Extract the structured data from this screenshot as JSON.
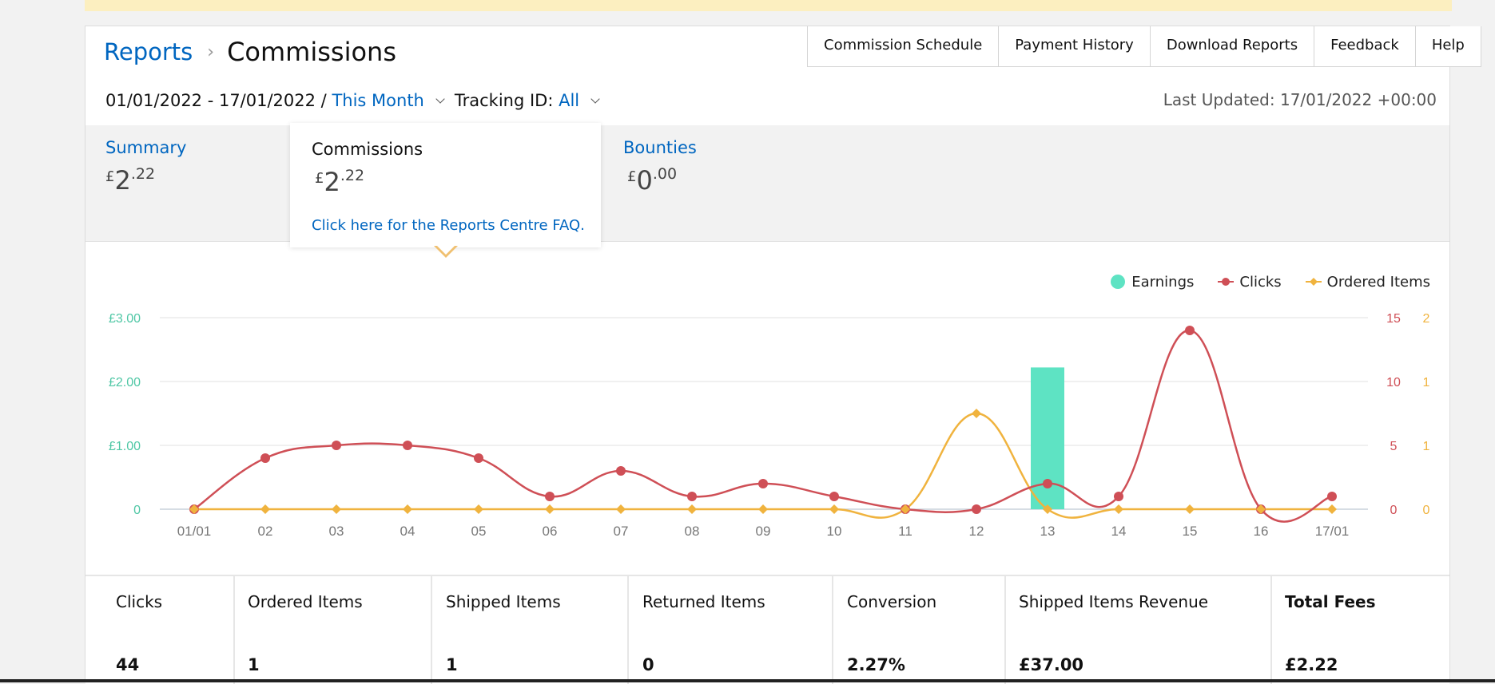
{
  "breadcrumb": {
    "parent": "Reports",
    "separator": "›",
    "current": "Commissions"
  },
  "top_nav": [
    "Commission Schedule",
    "Payment History",
    "Download Reports",
    "Feedback",
    "Help"
  ],
  "date_filter": {
    "range": "01/01/2022 - 17/01/2022 /",
    "period": "This Month",
    "tracking_label": "Tracking ID:",
    "tracking_value": "All"
  },
  "last_updated": "Last Updated: 17/01/2022 +00:00",
  "tabs": [
    {
      "title": "Summary",
      "currency": "£",
      "whole": "2",
      "decimal": ".22"
    },
    {
      "title": "Commissions",
      "currency": "£",
      "whole": "2",
      "decimal": ".22",
      "faq": "Click here for the Reports Centre FAQ."
    },
    {
      "title": "Bounties",
      "currency": "£",
      "whole": "0",
      "decimal": ".00"
    }
  ],
  "legend": {
    "earnings": "Earnings",
    "clicks": "Clicks",
    "ordered": "Ordered Items"
  },
  "colors": {
    "earnings": "#5ee3c3",
    "clicks": "#cf4f56",
    "ordered": "#f0b33e",
    "link": "#0066c0"
  },
  "chart_data": {
    "type": "line",
    "categories": [
      "01/01",
      "02",
      "03",
      "04",
      "05",
      "06",
      "07",
      "08",
      "09",
      "10",
      "11",
      "12",
      "13",
      "14",
      "15",
      "16",
      "17/01"
    ],
    "series": [
      {
        "name": "Earnings",
        "render": "bar",
        "axis": "left",
        "values": [
          0,
          0,
          0,
          0,
          0,
          0,
          0,
          0,
          0,
          0,
          0,
          0,
          2.22,
          0,
          0,
          0,
          0
        ]
      },
      {
        "name": "Clicks",
        "render": "line",
        "axis": "right1",
        "values": [
          0,
          4,
          5,
          5,
          4,
          1,
          3,
          1,
          2,
          1,
          0,
          0,
          2,
          1,
          14,
          0,
          1
        ]
      },
      {
        "name": "Ordered Items",
        "render": "line",
        "axis": "right2",
        "values": [
          0,
          0,
          0,
          0,
          0,
          0,
          0,
          0,
          0,
          0,
          0,
          1,
          0,
          0,
          0,
          0,
          0
        ]
      }
    ],
    "y_left": {
      "min": 0,
      "max": 3,
      "ticks": [
        "0",
        "£1.00",
        "£2.00",
        "£3.00"
      ]
    },
    "y_right1": {
      "min": 0,
      "max": 15,
      "ticks": [
        "0",
        "5",
        "10",
        "15"
      ]
    },
    "y_right2": {
      "min": 0,
      "max": 2,
      "ticks": [
        "0",
        "1",
        "1",
        "2"
      ]
    },
    "grid": true,
    "legend_position": "top-right"
  },
  "metrics": [
    {
      "label": "Clicks",
      "value": "44"
    },
    {
      "label": "Ordered Items",
      "value": "1"
    },
    {
      "label": "Shipped Items",
      "value": "1"
    },
    {
      "label": "Returned Items",
      "value": "0"
    },
    {
      "label": "Conversion",
      "value": "2.27%"
    },
    {
      "label": "Shipped Items Revenue",
      "value": "£37.00"
    },
    {
      "label": "Total Fees",
      "value": "£2.22"
    }
  ]
}
